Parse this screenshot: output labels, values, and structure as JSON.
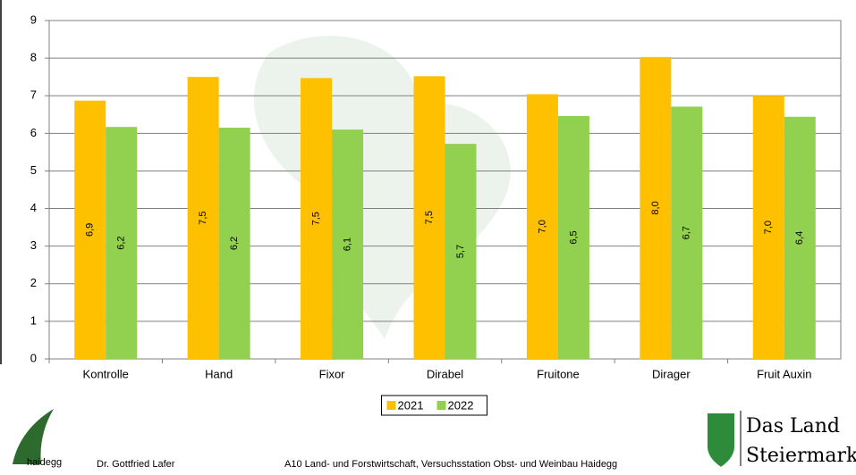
{
  "chart_data": {
    "type": "bar",
    "categories": [
      "Kontrolle",
      "Hand",
      "Fixor",
      "Dirabel",
      "Fruitone",
      "Dirager",
      "Fruit Auxin"
    ],
    "series": [
      {
        "name": "2021",
        "color": "#ffc000",
        "values": [
          6.87,
          7.5,
          7.47,
          7.52,
          7.04,
          8.03,
          7.0
        ],
        "value_labels": [
          "6,9",
          "7,5",
          "7,5",
          "7,5",
          "7,0",
          "8,0",
          "7,0"
        ]
      },
      {
        "name": "2022",
        "color": "#92d050",
        "values": [
          6.17,
          6.15,
          6.1,
          5.72,
          6.46,
          6.71,
          6.44
        ],
        "value_labels": [
          "6,2",
          "6,2",
          "6,1",
          "5,7",
          "6,5",
          "6,7",
          "6,4"
        ]
      }
    ],
    "ylim": [
      0,
      9
    ],
    "yticks": [
      0,
      1,
      2,
      3,
      4,
      5,
      6,
      7,
      8,
      9
    ],
    "grid": true,
    "legend": "bottom"
  },
  "footer": {
    "logo_text": "haidegg",
    "author": "Dr. Gottfried Lafer",
    "institution": "A10 Land- und Forstwirtschaft, Versuchsstation Obst- und Weinbau Haidegg",
    "brand_line1": "Das Land",
    "brand_line2": "Steiermark"
  }
}
